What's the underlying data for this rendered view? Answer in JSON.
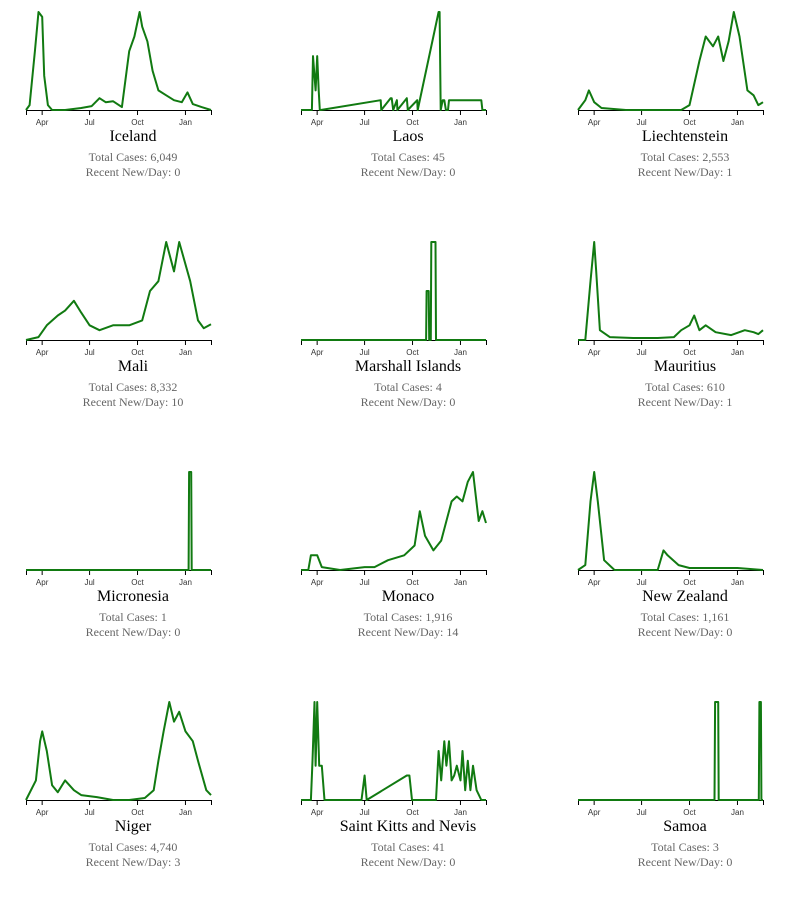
{
  "labels": {
    "total_prefix": "Total Cases: ",
    "recent_prefix": "Recent New/Day: "
  },
  "line_color": "#117a11",
  "chart_data": [
    {
      "type": "line",
      "title": "Iceland",
      "total_cases": "6,049",
      "recent_new_per_day": "0",
      "x": [
        "2020-03-01",
        "2020-03-08",
        "2020-03-18",
        "2020-03-25",
        "2020-04-01",
        "2020-04-05",
        "2020-04-12",
        "2020-04-20",
        "2020-05-15",
        "2020-06-15",
        "2020-07-05",
        "2020-07-20",
        "2020-08-01",
        "2020-08-15",
        "2020-09-01",
        "2020-09-15",
        "2020-09-25",
        "2020-10-05",
        "2020-10-10",
        "2020-10-20",
        "2020-10-30",
        "2020-11-10",
        "2020-11-25",
        "2020-12-10",
        "2020-12-25",
        "2021-01-05",
        "2021-01-15",
        "2021-02-01",
        "2021-02-19"
      ],
      "y": [
        0,
        5,
        60,
        100,
        95,
        35,
        5,
        0,
        0,
        2,
        4,
        12,
        8,
        9,
        3,
        60,
        75,
        100,
        85,
        70,
        40,
        20,
        15,
        10,
        8,
        18,
        6,
        3,
        0
      ],
      "x_ticks": [
        "Apr",
        "Jul",
        "Oct",
        "Jan"
      ]
    },
    {
      "type": "line",
      "title": "Laos",
      "total_cases": "45",
      "recent_new_per_day": "0",
      "x": [
        "2020-03-01",
        "2020-03-22",
        "2020-03-24",
        "2020-03-29",
        "2020-04-01",
        "2020-04-04",
        "2020-04-06",
        "2020-04-08",
        "2020-08-01",
        "2020-08-02",
        "2020-08-20",
        "2020-08-22",
        "2020-08-25",
        "2020-09-01",
        "2020-09-02",
        "2020-09-20",
        "2020-09-22",
        "2020-10-10",
        "2020-10-11",
        "2020-11-20",
        "2020-11-22",
        "2020-11-24",
        "2020-11-28",
        "2020-12-01",
        "2020-12-04",
        "2020-12-08",
        "2020-12-10",
        "2021-02-10",
        "2021-02-12",
        "2021-02-19"
      ],
      "y": [
        0,
        0,
        55,
        20,
        55,
        20,
        0,
        0,
        10,
        0,
        12,
        12,
        0,
        10,
        0,
        12,
        0,
        10,
        0,
        100,
        100,
        0,
        10,
        10,
        0,
        0,
        10,
        10,
        0,
        0
      ],
      "x_ticks": [
        "Apr",
        "Jul",
        "Oct",
        "Jan"
      ]
    },
    {
      "type": "line",
      "title": "Liechtenstein",
      "total_cases": "2,553",
      "recent_new_per_day": "1",
      "x": [
        "2020-03-01",
        "2020-03-15",
        "2020-03-22",
        "2020-04-01",
        "2020-04-15",
        "2020-06-01",
        "2020-08-01",
        "2020-09-15",
        "2020-10-01",
        "2020-10-20",
        "2020-11-01",
        "2020-11-15",
        "2020-11-25",
        "2020-12-05",
        "2020-12-15",
        "2020-12-25",
        "2021-01-05",
        "2021-01-20",
        "2021-02-01",
        "2021-02-10",
        "2021-02-19"
      ],
      "y": [
        0,
        10,
        20,
        8,
        2,
        0,
        0,
        0,
        5,
        50,
        75,
        65,
        75,
        50,
        70,
        100,
        75,
        20,
        15,
        5,
        8
      ],
      "x_ticks": [
        "Apr",
        "Jul",
        "Oct",
        "Jan"
      ]
    },
    {
      "type": "line",
      "title": "Mali",
      "total_cases": "8,332",
      "recent_new_per_day": "10",
      "x": [
        "2020-03-01",
        "2020-03-25",
        "2020-04-10",
        "2020-05-01",
        "2020-05-15",
        "2020-06-01",
        "2020-06-15",
        "2020-07-01",
        "2020-07-20",
        "2020-08-15",
        "2020-09-15",
        "2020-10-10",
        "2020-10-25",
        "2020-11-10",
        "2020-11-25",
        "2020-12-10",
        "2020-12-20",
        "2021-01-10",
        "2021-01-25",
        "2021-02-05",
        "2021-02-19"
      ],
      "y": [
        0,
        3,
        15,
        25,
        30,
        40,
        28,
        15,
        10,
        15,
        15,
        20,
        50,
        60,
        100,
        70,
        100,
        60,
        20,
        12,
        16
      ],
      "x_ticks": [
        "Apr",
        "Jul",
        "Oct",
        "Jan"
      ]
    },
    {
      "type": "line",
      "title": "Marshall Islands",
      "total_cases": "4",
      "recent_new_per_day": "0",
      "x": [
        "2020-03-01",
        "2020-10-27",
        "2020-10-28",
        "2020-11-01",
        "2020-11-02",
        "2020-11-05",
        "2020-11-06",
        "2020-11-14",
        "2020-11-15",
        "2021-02-19"
      ],
      "y": [
        0,
        0,
        50,
        50,
        0,
        0,
        100,
        100,
        0,
        0
      ],
      "x_ticks": [
        "Apr",
        "Jul",
        "Oct",
        "Jan"
      ]
    },
    {
      "type": "line",
      "title": "Mauritius",
      "total_cases": "610",
      "recent_new_per_day": "1",
      "x": [
        "2020-03-01",
        "2020-03-15",
        "2020-03-25",
        "2020-04-01",
        "2020-04-05",
        "2020-04-12",
        "2020-05-01",
        "2020-06-15",
        "2020-08-01",
        "2020-09-01",
        "2020-09-15",
        "2020-10-01",
        "2020-10-10",
        "2020-10-20",
        "2020-11-01",
        "2020-11-20",
        "2020-12-20",
        "2021-01-15",
        "2021-02-01",
        "2021-02-10",
        "2021-02-19"
      ],
      "y": [
        0,
        0,
        60,
        100,
        70,
        10,
        3,
        2,
        2,
        3,
        10,
        15,
        25,
        10,
        15,
        8,
        5,
        10,
        8,
        6,
        10
      ],
      "x_ticks": [
        "Apr",
        "Jul",
        "Oct",
        "Jan"
      ]
    },
    {
      "type": "line",
      "title": "Micronesia",
      "total_cases": "1",
      "recent_new_per_day": "0",
      "x": [
        "2020-03-01",
        "2021-01-07",
        "2021-01-08",
        "2021-01-12",
        "2021-01-13",
        "2021-02-19"
      ],
      "y": [
        0,
        0,
        100,
        100,
        0,
        0
      ],
      "x_ticks": [
        "Apr",
        "Jul",
        "Oct",
        "Jan"
      ]
    },
    {
      "type": "line",
      "title": "Monaco",
      "total_cases": "1,916",
      "recent_new_per_day": "14",
      "x": [
        "2020-03-01",
        "2020-03-15",
        "2020-03-20",
        "2020-04-01",
        "2020-04-10",
        "2020-05-15",
        "2020-07-01",
        "2020-07-20",
        "2020-08-15",
        "2020-09-15",
        "2020-10-05",
        "2020-10-15",
        "2020-10-25",
        "2020-11-10",
        "2020-11-25",
        "2020-12-05",
        "2020-12-15",
        "2020-12-25",
        "2021-01-05",
        "2021-01-15",
        "2021-01-25",
        "2021-02-05",
        "2021-02-12",
        "2021-02-19"
      ],
      "y": [
        0,
        0,
        15,
        15,
        3,
        0,
        3,
        3,
        10,
        15,
        25,
        60,
        35,
        20,
        30,
        50,
        70,
        75,
        70,
        90,
        100,
        50,
        60,
        48
      ],
      "x_ticks": [
        "Apr",
        "Jul",
        "Oct",
        "Jan"
      ]
    },
    {
      "type": "line",
      "title": "New Zealand",
      "total_cases": "1,161",
      "recent_new_per_day": "0",
      "x": [
        "2020-03-01",
        "2020-03-15",
        "2020-03-25",
        "2020-04-01",
        "2020-04-08",
        "2020-04-20",
        "2020-05-10",
        "2020-07-01",
        "2020-08-01",
        "2020-08-12",
        "2020-08-20",
        "2020-09-10",
        "2020-10-01",
        "2021-01-01",
        "2021-02-19"
      ],
      "y": [
        0,
        5,
        70,
        100,
        70,
        10,
        0,
        0,
        0,
        20,
        15,
        5,
        2,
        2,
        0
      ],
      "x_ticks": [
        "Apr",
        "Jul",
        "Oct",
        "Jan"
      ]
    },
    {
      "type": "line",
      "title": "Niger",
      "total_cases": "4,740",
      "recent_new_per_day": "3",
      "x": [
        "2020-03-01",
        "2020-03-20",
        "2020-03-28",
        "2020-04-01",
        "2020-04-10",
        "2020-04-20",
        "2020-05-01",
        "2020-05-15",
        "2020-06-01",
        "2020-06-15",
        "2020-07-15",
        "2020-08-15",
        "2020-09-15",
        "2020-10-15",
        "2020-11-01",
        "2020-11-10",
        "2020-11-20",
        "2020-12-01",
        "2020-12-10",
        "2020-12-20",
        "2021-01-01",
        "2021-01-15",
        "2021-01-25",
        "2021-02-10",
        "2021-02-19"
      ],
      "y": [
        0,
        20,
        60,
        70,
        50,
        15,
        8,
        20,
        10,
        5,
        3,
        0,
        0,
        2,
        10,
        40,
        70,
        100,
        80,
        90,
        70,
        60,
        40,
        10,
        5
      ],
      "x_ticks": [
        "Apr",
        "Jul",
        "Oct",
        "Jan"
      ]
    },
    {
      "type": "line",
      "title": "Saint Kitts and Nevis",
      "total_cases": "41",
      "recent_new_per_day": "0",
      "x": [
        "2020-03-01",
        "2020-03-20",
        "2020-03-23",
        "2020-03-27",
        "2020-03-29",
        "2020-04-01",
        "2020-04-05",
        "2020-04-10",
        "2020-04-15",
        "2020-06-25",
        "2020-07-01",
        "2020-07-05",
        "2020-09-20",
        "2020-09-25",
        "2020-09-30",
        "2020-11-15",
        "2020-11-20",
        "2020-11-25",
        "2020-12-01",
        "2020-12-05",
        "2020-12-10",
        "2020-12-15",
        "2020-12-20",
        "2020-12-25",
        "2021-01-01",
        "2021-01-05",
        "2021-01-10",
        "2021-01-15",
        "2021-01-20",
        "2021-01-25",
        "2021-02-01",
        "2021-02-10",
        "2021-02-19"
      ],
      "y": [
        0,
        0,
        40,
        100,
        35,
        100,
        35,
        35,
        0,
        0,
        25,
        0,
        25,
        25,
        0,
        0,
        50,
        20,
        60,
        35,
        60,
        20,
        25,
        35,
        20,
        50,
        10,
        40,
        10,
        35,
        10,
        0,
        0
      ],
      "x_ticks": [
        "Apr",
        "Jul",
        "Oct",
        "Jan"
      ]
    },
    {
      "type": "line",
      "title": "Samoa",
      "total_cases": "3",
      "recent_new_per_day": "0",
      "x": [
        "2020-03-01",
        "2020-11-18",
        "2020-11-19",
        "2020-11-21",
        "2020-11-23",
        "2020-11-25",
        "2020-11-26",
        "2021-02-11",
        "2021-02-12",
        "2021-02-15",
        "2021-02-16",
        "2021-02-19"
      ],
      "y": [
        0,
        0,
        100,
        100,
        100,
        100,
        0,
        0,
        100,
        100,
        0,
        0
      ],
      "x_ticks": [
        "Apr",
        "Jul",
        "Oct",
        "Jan"
      ]
    }
  ]
}
